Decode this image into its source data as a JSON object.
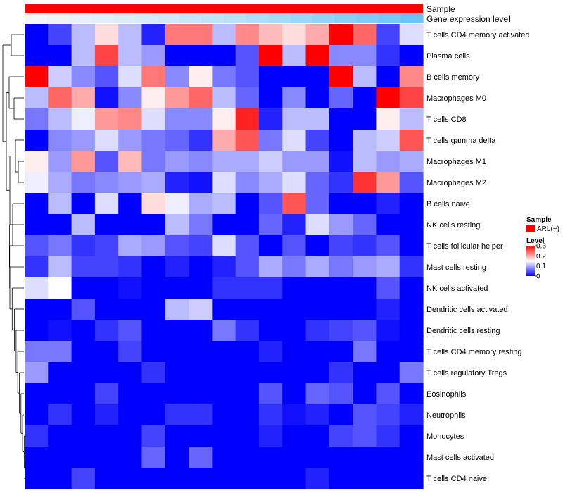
{
  "chart_data": {
    "type": "heatmap",
    "annotation_tracks": [
      "Sample",
      "Gene expression level"
    ],
    "sample_group": "ARL(+)",
    "sample_color": "#ff0000",
    "expression_level_colors": [
      "#f4f6f9",
      "#eef3f8",
      "#e8f1f8",
      "#e2eff8",
      "#dcedf8",
      "#d6ebf8",
      "#cfe9f7",
      "#c8e6f7",
      "#c0e3f7",
      "#b8e0f7",
      "#b0ddf7",
      "#a7daf7",
      "#9ed6f7",
      "#94d2f6",
      "#8acef6",
      "#80cbf6",
      "#76c7f6",
      "#6cc3f5"
    ],
    "rows": [
      "T cells CD4 memory activated",
      "Plasma cells",
      "B cells memory",
      "Macrophages M0",
      "T cells CD8",
      "T cells gamma delta",
      "Macrophages M1",
      "Macrophages M2",
      "B cells naive",
      "NK cells resting",
      "T cells follicular helper",
      "Mast cells resting",
      "NK cells activated",
      "Dendritic cells activated",
      "Dendritic cells resting",
      "T cells CD4 memory resting",
      "T cells regulatory  Tregs",
      "Eosinophils",
      "Neutrophils",
      "Monocytes",
      "Mast cells activated",
      "T cells CD4 naive"
    ],
    "values": [
      [
        0.0,
        0.04,
        0.11,
        0.17,
        0.11,
        0.02,
        0.23,
        0.23,
        0.11,
        0.22,
        0.19,
        0.17,
        0.2,
        0.3,
        0.24,
        0.04,
        0.13
      ],
      [
        0.0,
        0.0,
        0.11,
        0.26,
        0.11,
        0.09,
        0.0,
        0.0,
        0.0,
        0.05,
        0.3,
        0.11,
        0.3,
        0.08,
        0.08,
        0.03,
        0.0
      ],
      [
        0.3,
        0.12,
        0.08,
        0.05,
        0.13,
        0.23,
        0.08,
        0.16,
        0.07,
        0.05,
        0.0,
        0.0,
        0.0,
        0.3,
        0.11,
        0.0,
        0.22
      ],
      [
        0.11,
        0.24,
        0.2,
        0.01,
        0.08,
        0.16,
        0.21,
        0.24,
        0.11,
        0.06,
        0.0,
        0.08,
        0.0,
        0.06,
        0.0,
        0.3,
        0.26
      ],
      [
        0.07,
        0.11,
        0.14,
        0.21,
        0.22,
        0.13,
        0.08,
        0.08,
        0.16,
        0.28,
        0.02,
        0.11,
        0.11,
        0.0,
        0.0,
        0.16,
        0.11
      ],
      [
        0.0,
        0.08,
        0.09,
        0.13,
        0.09,
        0.07,
        0.06,
        0.03,
        0.2,
        0.25,
        0.07,
        0.13,
        0.04,
        0.0,
        0.11,
        0.12,
        0.25
      ],
      [
        0.16,
        0.09,
        0.21,
        0.05,
        0.19,
        0.07,
        0.09,
        0.08,
        0.1,
        0.1,
        0.12,
        0.09,
        0.09,
        0.01,
        0.11,
        0.09,
        0.1
      ],
      [
        0.14,
        0.1,
        0.07,
        0.08,
        0.09,
        0.1,
        0.02,
        0.01,
        0.13,
        0.08,
        0.1,
        0.13,
        0.06,
        0.03,
        0.27,
        0.21,
        0.05
      ],
      [
        0.0,
        0.11,
        0.0,
        0.13,
        0.0,
        0.17,
        0.14,
        0.1,
        0.11,
        0.0,
        0.05,
        0.25,
        0.06,
        0.0,
        0.0,
        0.02,
        0.0
      ],
      [
        0.0,
        0.0,
        0.11,
        0.0,
        0.0,
        0.0,
        0.11,
        0.07,
        0.0,
        0.0,
        0.06,
        0.02,
        0.13,
        0.09,
        0.06,
        0.0,
        0.0
      ],
      [
        0.05,
        0.07,
        0.03,
        0.04,
        0.1,
        0.09,
        0.05,
        0.04,
        0.13,
        0.05,
        0.0,
        0.05,
        0.0,
        0.04,
        0.03,
        0.05,
        0.0
      ],
      [
        0.03,
        0.11,
        0.04,
        0.04,
        0.03,
        0.0,
        0.02,
        0.0,
        0.02,
        0.05,
        0.1,
        0.07,
        0.1,
        0.07,
        0.09,
        0.1,
        0.03
      ],
      [
        0.13,
        0.15,
        0.0,
        0.0,
        0.01,
        0.0,
        0.0,
        0.0,
        0.03,
        0.03,
        0.03,
        0.0,
        0.0,
        0.0,
        0.0,
        0.05,
        0.0
      ],
      [
        0.0,
        0.0,
        0.05,
        0.0,
        0.0,
        0.0,
        0.11,
        0.12,
        0.0,
        0.0,
        0.0,
        0.0,
        0.0,
        0.0,
        0.0,
        0.02,
        0.0
      ],
      [
        0.0,
        0.01,
        0.0,
        0.03,
        0.05,
        0.0,
        0.0,
        0.0,
        0.07,
        0.03,
        0.0,
        0.0,
        0.03,
        0.04,
        0.05,
        0.01,
        0.0
      ],
      [
        0.07,
        0.07,
        0.0,
        0.0,
        0.04,
        0.0,
        0.0,
        0.0,
        0.0,
        0.0,
        0.02,
        0.0,
        0.0,
        0.0,
        0.07,
        0.0,
        0.0
      ],
      [
        0.09,
        0.0,
        0.0,
        0.0,
        0.0,
        0.03,
        0.0,
        0.0,
        0.0,
        0.0,
        0.0,
        0.0,
        0.0,
        0.03,
        0.0,
        0.0,
        0.07
      ],
      [
        0.0,
        0.0,
        0.0,
        0.04,
        0.0,
        0.0,
        0.0,
        0.0,
        0.0,
        0.0,
        0.05,
        0.0,
        0.06,
        0.05,
        0.0,
        0.05,
        0.0
      ],
      [
        0.0,
        0.03,
        0.0,
        0.02,
        0.0,
        0.0,
        0.03,
        0.03,
        0.0,
        0.0,
        0.03,
        0.01,
        0.02,
        0.0,
        0.05,
        0.04,
        0.02
      ],
      [
        0.03,
        0.0,
        0.0,
        0.0,
        0.0,
        0.04,
        0.0,
        0.0,
        0.0,
        0.0,
        0.02,
        0.0,
        0.0,
        0.04,
        0.05,
        0.03,
        0.0
      ],
      [
        0.0,
        0.0,
        0.0,
        0.0,
        0.0,
        0.06,
        0.0,
        0.06,
        0.0,
        0.0,
        0.0,
        0.0,
        0.0,
        0.0,
        0.0,
        0.0,
        0.0
      ],
      [
        0.0,
        0.0,
        0.04,
        0.0,
        0.0,
        0.0,
        0.0,
        0.0,
        0.0,
        0.0,
        0.0,
        0.0,
        0.02,
        0.0,
        0.0,
        0.0,
        0.0
      ]
    ],
    "legend": {
      "sample_title": "Sample",
      "sample_label": "ARL(+)",
      "level_title": "Level",
      "ticks": [
        "0.3",
        "0.2",
        "0.1",
        "0"
      ],
      "tick_values": [
        0.3,
        0.2,
        0.1,
        0
      ],
      "range": [
        0,
        0.3
      ],
      "colors": {
        "low": "#0000ff",
        "mid": "#ffffff",
        "high": "#ff0000"
      },
      "placement": "right"
    }
  }
}
